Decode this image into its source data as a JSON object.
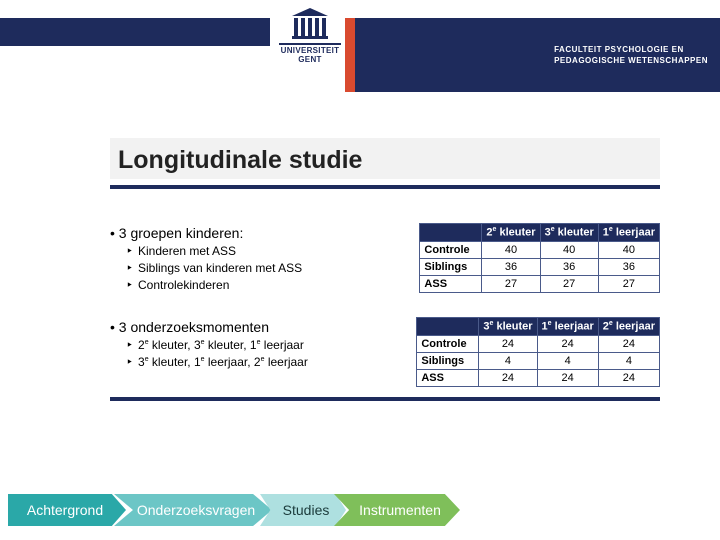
{
  "header": {
    "univ_line1": "UNIVERSITEIT",
    "univ_line2": "GENT",
    "faculty_line1": "FACULTEIT PSYCHOLOGIE EN",
    "faculty_line2": "PEDAGOGISCHE WETENSCHAPPEN",
    "colors": {
      "primary": "#1e2b5c",
      "accent": "#d94a2f"
    }
  },
  "title": "Longitudinale studie",
  "section1": {
    "heading": "3 groepen kinderen:",
    "items": [
      "Kinderen met ASS",
      "Siblings van kinderen met ASS",
      "Controlekinderen"
    ],
    "table": {
      "header_bg": "#1e2b5c",
      "border_color": "#4a5a8a",
      "cols": [
        {
          "pre": "2",
          "sup": "e",
          "post": " kleuter"
        },
        {
          "pre": "3",
          "sup": "e",
          "post": " kleuter"
        },
        {
          "pre": "1",
          "sup": "e",
          "post": " leerjaar"
        }
      ],
      "rows": [
        {
          "label": "Controle",
          "vals": [
            40,
            40,
            40
          ]
        },
        {
          "label": "Siblings",
          "vals": [
            36,
            36,
            36
          ]
        },
        {
          "label": "ASS",
          "vals": [
            27,
            27,
            27
          ]
        }
      ]
    }
  },
  "section2": {
    "heading": "3 onderzoeksmomenten",
    "items_html": [
      "2<sup>e</sup> kleuter, 3<sup>e</sup> kleuter, 1<sup>e</sup> leerjaar",
      "3<sup>e</sup> kleuter, 1<sup>e</sup> leerjaar, 2<sup>e</sup> leerjaar"
    ],
    "table": {
      "header_bg": "#1e2b5c",
      "border_color": "#4a5a8a",
      "cols": [
        {
          "pre": "3",
          "sup": "e",
          "post": " kleuter"
        },
        {
          "pre": "1",
          "sup": "e",
          "post": " leerjaar"
        },
        {
          "pre": "2",
          "sup": "e",
          "post": " leerjaar"
        }
      ],
      "rows": [
        {
          "label": "Controle",
          "vals": [
            24,
            24,
            24
          ]
        },
        {
          "label": "Siblings",
          "vals": [
            4,
            4,
            4
          ]
        },
        {
          "label": "ASS",
          "vals": [
            24,
            24,
            24
          ]
        }
      ]
    }
  },
  "chevrons": {
    "items": [
      {
        "label": "Achtergrond",
        "fill": "#2aa8a8",
        "text": "#ffffff"
      },
      {
        "label": "Onderzoeksvragen",
        "fill": "#6cc6c6",
        "text": "#ffffff"
      },
      {
        "label": "Studies",
        "fill": "#aee0e0",
        "text": "#1b3b3b"
      },
      {
        "label": "Instrumenten",
        "fill": "#7fbf5a",
        "text": "#ffffff"
      }
    ]
  }
}
